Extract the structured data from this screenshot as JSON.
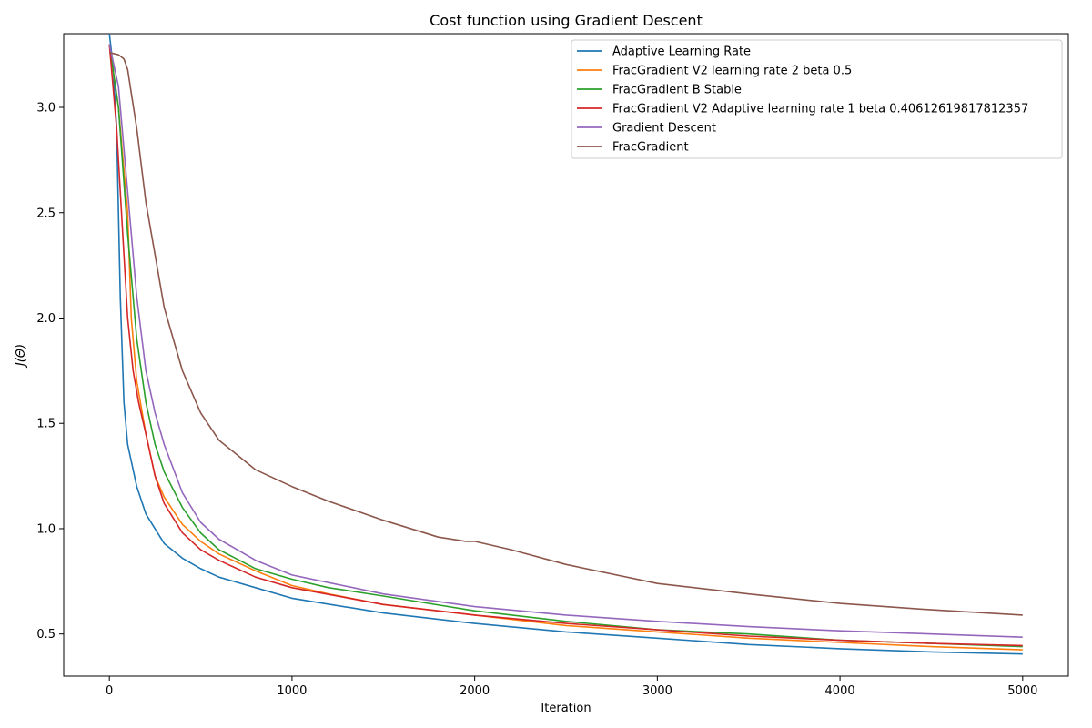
{
  "chart_data": {
    "type": "line",
    "title": "Cost function using Gradient Descent",
    "xlabel": "Iteration",
    "ylabel": "J(Θ)",
    "xlim": [
      -250,
      5250
    ],
    "ylim": [
      0.3,
      3.35
    ],
    "xticks": [
      0,
      1000,
      2000,
      3000,
      4000,
      5000
    ],
    "yticks": [
      0.5,
      1.0,
      1.5,
      2.0,
      2.5,
      3.0
    ],
    "xtick_labels": [
      "0",
      "1000",
      "2000",
      "3000",
      "4000",
      "5000"
    ],
    "ytick_labels": [
      "0.5",
      "1.0",
      "1.5",
      "2.0",
      "2.5",
      "3.0"
    ],
    "legend_position": "upper-right",
    "grid": false,
    "series": [
      {
        "name": "Adaptive Learning Rate",
        "color": "#1f77b4",
        "x": [
          0,
          20,
          40,
          60,
          80,
          100,
          150,
          200,
          300,
          400,
          500,
          600,
          800,
          1000,
          1500,
          2000,
          2500,
          3000,
          3500,
          4000,
          4500,
          5000
        ],
        "y": [
          3.35,
          3.2,
          2.9,
          2.1,
          1.6,
          1.4,
          1.2,
          1.07,
          0.93,
          0.86,
          0.81,
          0.77,
          0.72,
          0.67,
          0.6,
          0.55,
          0.51,
          0.48,
          0.45,
          0.43,
          0.415,
          0.405
        ]
      },
      {
        "name": "FracGradient V2 learning rate 2 beta 0.5",
        "color": "#ff7f0e",
        "x": [
          0,
          50,
          100,
          120,
          150,
          200,
          250,
          300,
          400,
          500,
          600,
          800,
          1000,
          1200,
          1500,
          2000,
          2500,
          3000,
          3500,
          4000,
          4500,
          5000
        ],
        "y": [
          3.3,
          3.0,
          2.5,
          2.0,
          1.7,
          1.45,
          1.25,
          1.15,
          1.02,
          0.94,
          0.88,
          0.8,
          0.73,
          0.69,
          0.64,
          0.59,
          0.54,
          0.51,
          0.48,
          0.46,
          0.44,
          0.425
        ]
      },
      {
        "name": "FracGradient B Stable",
        "color": "#2ca02c",
        "x": [
          0,
          50,
          100,
          150,
          200,
          250,
          300,
          400,
          500,
          600,
          800,
          1000,
          1200,
          1500,
          2000,
          2500,
          3000,
          3500,
          4000,
          4500,
          5000
        ],
        "y": [
          3.3,
          3.0,
          2.4,
          1.9,
          1.6,
          1.4,
          1.27,
          1.1,
          0.98,
          0.9,
          0.81,
          0.76,
          0.72,
          0.68,
          0.61,
          0.56,
          0.52,
          0.5,
          0.47,
          0.455,
          0.44
        ]
      },
      {
        "name": "FracGradient V2 Adaptive learning rate 1 beta 0.40612619817812357",
        "color": "#d62728",
        "x": [
          0,
          40,
          80,
          100,
          130,
          160,
          200,
          250,
          300,
          400,
          500,
          600,
          800,
          1000,
          1500,
          2000,
          2500,
          3000,
          3500,
          4000,
          4500,
          5000
        ],
        "y": [
          3.3,
          2.9,
          2.3,
          2.0,
          1.75,
          1.6,
          1.45,
          1.25,
          1.12,
          0.98,
          0.9,
          0.85,
          0.77,
          0.72,
          0.64,
          0.59,
          0.55,
          0.52,
          0.49,
          0.47,
          0.455,
          0.445
        ]
      },
      {
        "name": "Gradient Descent",
        "color": "#9467bd",
        "x": [
          0,
          50,
          100,
          150,
          200,
          250,
          300,
          400,
          500,
          600,
          800,
          1000,
          1500,
          2000,
          2500,
          3000,
          3500,
          4000,
          4500,
          5000
        ],
        "y": [
          3.3,
          3.1,
          2.6,
          2.1,
          1.75,
          1.55,
          1.4,
          1.17,
          1.03,
          0.95,
          0.85,
          0.78,
          0.69,
          0.63,
          0.59,
          0.56,
          0.535,
          0.515,
          0.5,
          0.485
        ]
      },
      {
        "name": "FracGradient",
        "color": "#8c564b",
        "x": [
          0,
          50,
          80,
          100,
          150,
          200,
          250,
          300,
          400,
          500,
          600,
          800,
          1000,
          1200,
          1500,
          1800,
          1950,
          2000,
          2200,
          2500,
          3000,
          3500,
          4000,
          4500,
          5000
        ],
        "y": [
          3.26,
          3.25,
          3.23,
          3.18,
          2.9,
          2.55,
          2.3,
          2.05,
          1.75,
          1.55,
          1.42,
          1.28,
          1.2,
          1.13,
          1.04,
          0.96,
          0.94,
          0.94,
          0.9,
          0.83,
          0.74,
          0.69,
          0.645,
          0.615,
          0.59
        ]
      }
    ]
  }
}
